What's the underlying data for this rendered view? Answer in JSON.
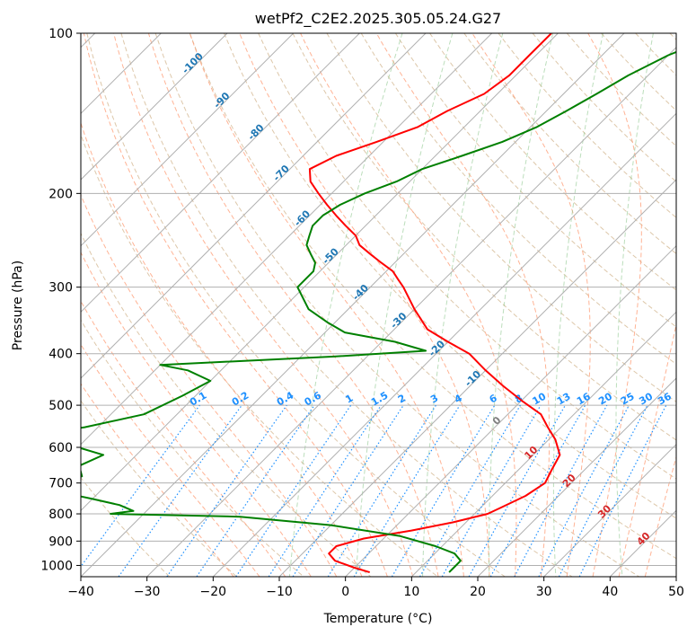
{
  "chart_data": {
    "type": "line",
    "title": "wetPf2_C2E2.2025.305.05.24.G27",
    "xlabel": "Temperature (°C)",
    "ylabel": "Pressure (hPa)",
    "xlim": [
      -40,
      50
    ],
    "ylim": [
      1050,
      100
    ],
    "yscale": "log",
    "grid": true,
    "x_ticks": [
      -40,
      -30,
      -20,
      -10,
      0,
      10,
      20,
      30,
      40,
      50
    ],
    "x_tick_labels": [
      "−40",
      "−30",
      "−20",
      "−10",
      "0",
      "10",
      "20",
      "30",
      "40",
      "50"
    ],
    "y_ticks": [
      100,
      200,
      300,
      400,
      500,
      600,
      700,
      800,
      900,
      1000
    ],
    "y_tick_labels": [
      "100",
      "200",
      "300",
      "400",
      "500",
      "600",
      "700",
      "800",
      "900",
      "1000"
    ],
    "skew_isotherm_labels": [
      {
        "t": -100,
        "text": "-100"
      },
      {
        "t": -90,
        "text": "-90"
      },
      {
        "t": -80,
        "text": "-80"
      },
      {
        "t": -70,
        "text": "-70"
      },
      {
        "t": -60,
        "text": "-60"
      },
      {
        "t": -50,
        "text": "-50"
      },
      {
        "t": -40,
        "text": "-40"
      },
      {
        "t": -30,
        "text": "-30"
      },
      {
        "t": -20,
        "text": "-20"
      },
      {
        "t": -10,
        "text": "-10"
      }
    ],
    "mixing_ratio_labels": [
      "0.1",
      "0.2",
      "0.4",
      "0.6",
      "1",
      "1.5",
      "2",
      "3",
      "4",
      "6",
      "8",
      "10",
      "13",
      "16",
      "20",
      "25",
      "30",
      "36"
    ],
    "inline_labels": [
      {
        "t": 0,
        "p": 540,
        "text": "0"
      },
      {
        "t": 10,
        "p": 620,
        "text": "10"
      },
      {
        "t": 20,
        "p": 700,
        "text": "20"
      },
      {
        "t": 30,
        "p": 800,
        "text": "30"
      },
      {
        "t": 40,
        "p": 900,
        "text": "40"
      }
    ],
    "series": [
      {
        "kind": "temperature",
        "color": "#ff0000",
        "points": [
          [
            -51,
            100
          ],
          [
            -51,
            110
          ],
          [
            -51,
            120
          ],
          [
            -52,
            130
          ],
          [
            -55,
            140
          ],
          [
            -57,
            150
          ],
          [
            -61,
            160
          ],
          [
            -65,
            170
          ],
          [
            -67,
            180
          ],
          [
            -65,
            190
          ],
          [
            -62,
            200
          ],
          [
            -59,
            210
          ],
          [
            -56,
            220
          ],
          [
            -53,
            230
          ],
          [
            -50,
            240
          ],
          [
            -48,
            250
          ],
          [
            -45,
            260
          ],
          [
            -42,
            270
          ],
          [
            -39,
            280
          ],
          [
            -37,
            290
          ],
          [
            -35,
            300
          ],
          [
            -30,
            330
          ],
          [
            -25,
            360
          ],
          [
            -20,
            380
          ],
          [
            -15,
            400
          ],
          [
            -10,
            430
          ],
          [
            -5,
            460
          ],
          [
            0,
            490
          ],
          [
            5,
            520
          ],
          [
            8,
            550
          ],
          [
            11,
            580
          ],
          [
            14,
            620
          ],
          [
            15,
            660
          ],
          [
            16,
            700
          ],
          [
            15,
            740
          ],
          [
            13,
            780
          ],
          [
            12,
            800
          ],
          [
            8,
            830
          ],
          [
            3,
            860
          ],
          [
            -3,
            890
          ],
          [
            -6,
            920
          ],
          [
            -6,
            950
          ],
          [
            -4,
            980
          ],
          [
            0,
            1010
          ],
          [
            3,
            1030
          ]
        ]
      },
      {
        "kind": "dewpoint",
        "color": "#008000",
        "points": [
          [
            -25,
            100
          ],
          [
            -30,
            110
          ],
          [
            -33,
            120
          ],
          [
            -35,
            130
          ],
          [
            -37,
            140
          ],
          [
            -39,
            150
          ],
          [
            -42,
            160
          ],
          [
            -46,
            170
          ],
          [
            -50,
            180
          ],
          [
            -52,
            190
          ],
          [
            -55,
            200
          ],
          [
            -57,
            210
          ],
          [
            -58,
            220
          ],
          [
            -58,
            230
          ],
          [
            -57,
            240
          ],
          [
            -56,
            250
          ],
          [
            -54,
            260
          ],
          [
            -52,
            270
          ],
          [
            -51,
            280
          ],
          [
            -51,
            290
          ],
          [
            -51,
            300
          ],
          [
            -46,
            330
          ],
          [
            -41,
            350
          ],
          [
            -37,
            365
          ],
          [
            -28,
            380
          ],
          [
            -22,
            395
          ],
          [
            -35,
            405
          ],
          [
            -60,
            420
          ],
          [
            -55,
            430
          ],
          [
            -50,
            450
          ],
          [
            -52,
            480
          ],
          [
            -55,
            520
          ],
          [
            -62,
            550
          ],
          [
            -73,
            580
          ],
          [
            -60,
            600
          ],
          [
            -55,
            620
          ],
          [
            -57,
            650
          ],
          [
            -55,
            680
          ],
          [
            -58,
            720
          ],
          [
            -50,
            750
          ],
          [
            -45,
            770
          ],
          [
            -42,
            790
          ],
          [
            -45,
            800
          ],
          [
            -25,
            810
          ],
          [
            -10,
            840
          ],
          [
            2,
            880
          ],
          [
            9,
            920
          ],
          [
            13,
            950
          ],
          [
            15,
            980
          ],
          [
            15,
            1010
          ],
          [
            15,
            1030
          ]
        ]
      }
    ],
    "colors": {
      "dry_adiabat": "#d2b48c",
      "moist_adiabat": "#ffa07a",
      "mixing_ratio": "#1e90ff",
      "isotherm_label": "#1f77b4",
      "inline_label": "#d62728",
      "zero_label": "#808080",
      "grid": "#b0b0b0",
      "green_dashed": "#90c890"
    }
  }
}
